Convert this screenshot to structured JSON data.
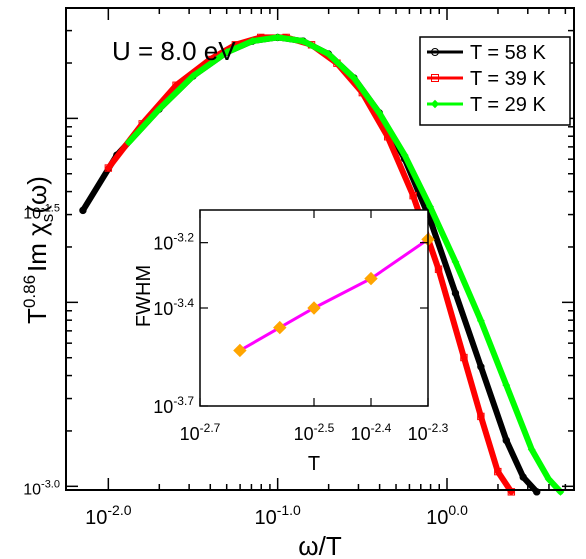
{
  "chart_data": [
    {
      "type": "line",
      "annotation": {
        "prefix": "U = ",
        "value": "8.0",
        "unit": " eV"
      },
      "xlabel": {
        "base": "ω/T"
      },
      "ylabel": {
        "prefix": "T",
        "exponent": "0.86",
        "body": "Im χ",
        "subscript": "s",
        "suffix": "(ω)"
      },
      "x_scale": "log",
      "y_scale": "log",
      "x_log_range": [
        -2.25,
        0.75
      ],
      "y_log_range": [
        -3.02,
        -0.4
      ],
      "x_ticks": [
        {
          "log": -2.0,
          "label": "-2.0"
        },
        {
          "log": -1.0,
          "label": "-1.0"
        },
        {
          "log": 0.0,
          "label": "0.0"
        }
      ],
      "y_ticks": [
        {
          "log": -3.0,
          "label": "-3.0"
        },
        {
          "log": -1.5,
          "label": "-1.5"
        }
      ],
      "tick_base": "10",
      "legend_position": "top-right",
      "series": [
        {
          "name": "T = 58 K",
          "color": "#000000",
          "marker": "circle",
          "x_log": [
            -2.15,
            -1.95,
            -1.7,
            -1.5,
            -1.3,
            -1.15,
            -1.0,
            -0.85,
            -0.7,
            -0.55,
            -0.4,
            -0.25,
            -0.1,
            0.05,
            0.2,
            0.35,
            0.45,
            0.53
          ],
          "y_log": [
            -1.5,
            -1.2,
            -0.95,
            -0.77,
            -0.64,
            -0.58,
            -0.56,
            -0.58,
            -0.65,
            -0.78,
            -0.97,
            -1.22,
            -1.55,
            -1.95,
            -2.35,
            -2.75,
            -2.95,
            -3.03
          ]
        },
        {
          "name": "T = 39 K",
          "color": "#ff0000",
          "marker": "square",
          "x_log": [
            -2.0,
            -1.8,
            -1.6,
            -1.4,
            -1.25,
            -1.1,
            -0.95,
            -0.8,
            -0.65,
            -0.5,
            -0.35,
            -0.2,
            -0.05,
            0.1,
            0.2,
            0.3,
            0.38
          ],
          "y_log": [
            -1.27,
            -1.03,
            -0.82,
            -0.68,
            -0.6,
            -0.56,
            -0.56,
            -0.6,
            -0.7,
            -0.86,
            -1.1,
            -1.42,
            -1.82,
            -2.3,
            -2.62,
            -2.92,
            -3.03
          ]
        },
        {
          "name": "T = 29 K",
          "color": "#00ff00",
          "marker": "diamond",
          "x_log": [
            -1.88,
            -1.7,
            -1.5,
            -1.3,
            -1.15,
            -1.0,
            -0.85,
            -0.7,
            -0.55,
            -0.4,
            -0.25,
            -0.1,
            0.05,
            0.2,
            0.35,
            0.5,
            0.6,
            0.67
          ],
          "y_log": [
            -1.13,
            -0.95,
            -0.77,
            -0.64,
            -0.58,
            -0.56,
            -0.58,
            -0.65,
            -0.78,
            -0.97,
            -1.2,
            -1.48,
            -1.78,
            -2.1,
            -2.45,
            -2.8,
            -2.96,
            -3.03
          ]
        }
      ]
    },
    {
      "type": "line",
      "xlabel": "T",
      "ylabel": "FWHM",
      "x_scale": "log",
      "y_scale": "log",
      "x_log_range": [
        -2.7,
        -2.3
      ],
      "y_log_range": [
        -3.7,
        -3.1
      ],
      "x_ticks": [
        {
          "log": -2.7,
          "label": "-2.7"
        },
        {
          "log": -2.5,
          "label": "-2.5"
        },
        {
          "log": -2.4,
          "label": "-2.4"
        },
        {
          "log": -2.3,
          "label": "-2.3"
        }
      ],
      "y_ticks": [
        {
          "log": -3.7,
          "label": "-3.7"
        },
        {
          "log": -3.4,
          "label": "-3.4"
        },
        {
          "log": -3.2,
          "label": "-3.2"
        }
      ],
      "tick_base": "10",
      "series": [
        {
          "line_color": "#ff00ff",
          "marker_color": "#ffa500",
          "marker": "diamond",
          "x_log": [
            -2.63,
            -2.56,
            -2.5,
            -2.4,
            -2.3
          ],
          "y_log": [
            -3.53,
            -3.46,
            -3.4,
            -3.31,
            -3.19
          ]
        }
      ]
    }
  ]
}
